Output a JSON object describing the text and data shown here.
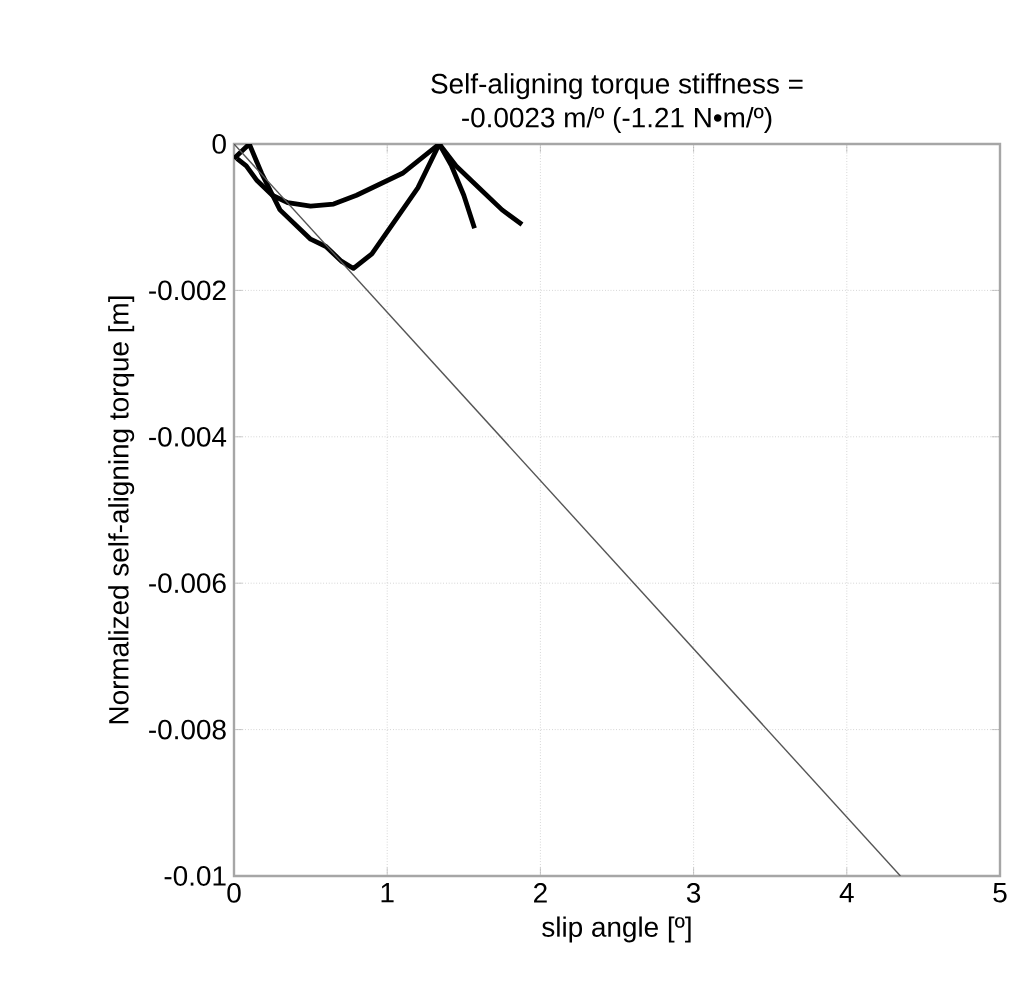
{
  "chart_data": {
    "type": "line",
    "title": "Self-aligning torque stiffness =\n-0.0023 m/º (-1.21 N•m/º)",
    "xlabel": "slip angle [º]",
    "ylabel": "Normalized self-aligning torque [m]",
    "xlim": [
      0,
      5
    ],
    "ylim": [
      -0.01,
      0
    ],
    "xticks": [
      0,
      1,
      2,
      3,
      4,
      5
    ],
    "yticks": [
      {
        "value": -0.01,
        "label": "-0.01"
      },
      {
        "value": -0.008,
        "label": "-0.008"
      },
      {
        "value": -0.006,
        "label": "-0.006"
      },
      {
        "value": -0.004,
        "label": "-0.004"
      },
      {
        "value": -0.002,
        "label": "-0.002"
      },
      {
        "value": 0,
        "label": "0"
      }
    ],
    "grid": true,
    "series": [
      {
        "color": "#000000",
        "x": [
          0.02,
          0.08,
          0.15,
          0.25,
          0.35,
          0.5,
          0.65,
          0.8,
          0.95,
          1.1,
          1.22,
          1.34,
          1.45,
          1.6,
          1.75,
          1.88
        ],
        "values": [
          -0.0002,
          -0.0003,
          -0.0005,
          -0.0007,
          -0.0008,
          -0.00085,
          -0.00082,
          -0.0007,
          -0.00055,
          -0.0004,
          -0.0002,
          0,
          -0.0003,
          -0.0006,
          -0.0009,
          -0.0011
        ]
      },
      {
        "color": "#000000",
        "x": [
          0,
          0.05,
          0.1,
          0.18,
          0.3,
          0.4,
          0.5,
          0.6,
          0.7,
          0.78,
          0.9,
          1.0,
          1.1,
          1.2,
          1.34,
          1.42,
          1.5,
          1.57
        ],
        "values": [
          -0.0002,
          -0.0001,
          0,
          -0.0004,
          -0.0009,
          -0.0011,
          -0.0013,
          -0.0014,
          -0.0016,
          -0.0017,
          -0.0015,
          -0.0012,
          -0.0009,
          -0.0006,
          0,
          -0.0003,
          -0.0007,
          -0.00115
        ]
      },
      {
        "color": "#555555",
        "x": [
          0,
          4.35
        ],
        "values": [
          0,
          -0.01
        ]
      }
    ]
  }
}
